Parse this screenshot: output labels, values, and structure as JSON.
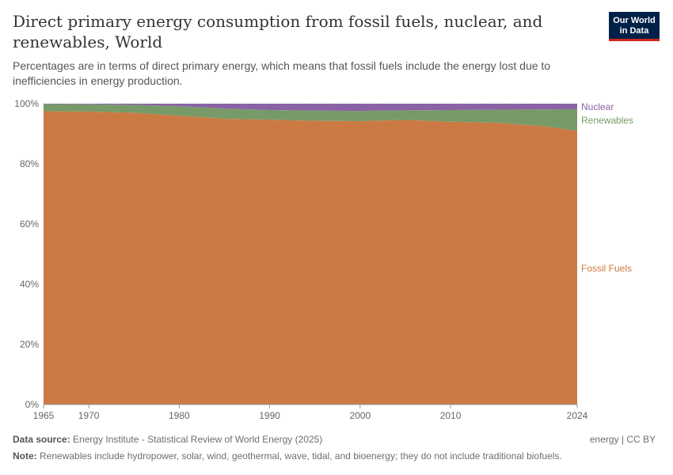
{
  "title": "Direct primary energy consumption from fossil fuels, nuclear, and renewables, World",
  "subtitle": "Percentages are in terms of direct primary energy, which means that fossil fuels include the energy lost due to inefficiencies in energy production.",
  "logo": "Our World in Data",
  "footer": {
    "source_label": "Data source:",
    "source": "Energy Institute - Statistical Review of World Energy (2025)",
    "license": "energy | CC BY",
    "note_label": "Note:",
    "note": "Renewables include hydropower, solar, wind, geothermal, wave, tidal, and bioenergy; they do not include traditional biofuels."
  },
  "chart_data": {
    "type": "area",
    "stacked": true,
    "x": [
      1965,
      1970,
      1975,
      1980,
      1985,
      1990,
      1995,
      2000,
      2005,
      2010,
      2015,
      2020,
      2024
    ],
    "series": [
      {
        "name": "Fossil Fuels",
        "color": "#cc7a44",
        "values": [
          97.5,
          97.4,
          97.0,
          96.0,
          95.0,
          94.7,
          94.3,
          94.2,
          94.6,
          94.0,
          93.7,
          92.6,
          91.0
        ]
      },
      {
        "name": "Renewables",
        "color": "#789a68",
        "values": [
          2.4,
          2.4,
          2.6,
          3.2,
          3.4,
          3.2,
          3.4,
          3.4,
          3.2,
          3.9,
          4.3,
          5.5,
          7.2
        ]
      },
      {
        "name": "Nuclear",
        "color": "#8a63a6",
        "values": [
          0.1,
          0.2,
          0.4,
          0.8,
          1.6,
          2.1,
          2.3,
          2.4,
          2.2,
          2.1,
          2.0,
          1.9,
          1.8
        ]
      }
    ],
    "xticks": [
      "1965",
      "1970",
      "1980",
      "1990",
      "2000",
      "2010",
      "2024"
    ],
    "yticks": [
      "0%",
      "20%",
      "40%",
      "60%",
      "80%",
      "100%"
    ],
    "ylim": [
      0,
      100
    ],
    "xlim": [
      1965,
      2024
    ],
    "grid": "horizontal dashed",
    "legend": "right, inline labels"
  }
}
